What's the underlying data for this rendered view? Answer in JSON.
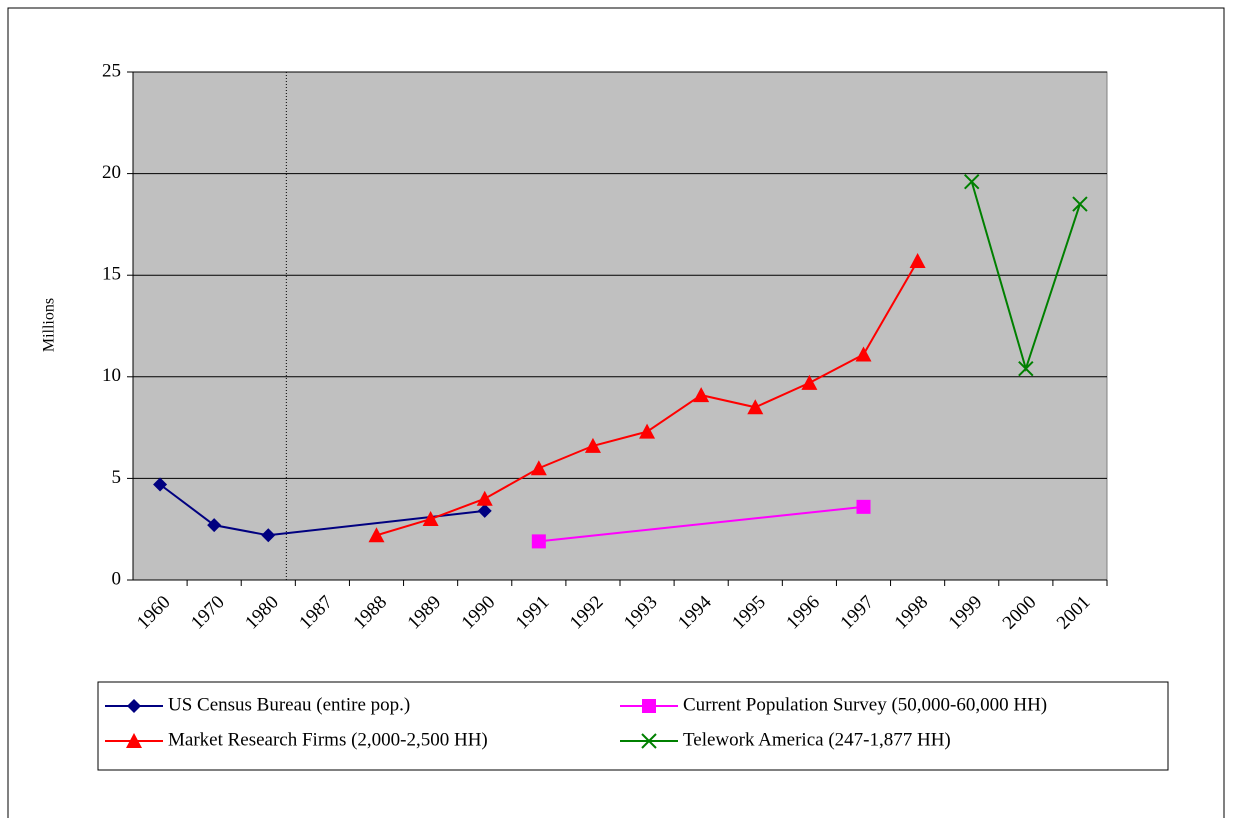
{
  "chart_data": {
    "type": "line",
    "y_label": "Millions",
    "categories": [
      "1960",
      "1970",
      "1980",
      "1987",
      "1988",
      "1989",
      "1990",
      "1991",
      "1992",
      "1993",
      "1994",
      "1995",
      "1996",
      "1997",
      "1998",
      "1999",
      "2000",
      "2001"
    ],
    "series": [
      {
        "name": "US Census Bureau (entire pop.)",
        "color": "#000080",
        "marker": "diamond",
        "values": [
          4.7,
          2.7,
          2.2,
          null,
          null,
          null,
          3.4,
          null,
          null,
          null,
          null,
          null,
          null,
          null,
          null,
          null,
          null,
          null
        ]
      },
      {
        "name": "Current Population Survey (50,000-60,000 HH)",
        "color": "#ff00ff",
        "marker": "square",
        "values": [
          null,
          null,
          null,
          null,
          null,
          null,
          null,
          1.9,
          null,
          null,
          null,
          null,
          null,
          3.6,
          null,
          null,
          null,
          null
        ]
      },
      {
        "name": "Market Research Firms (2,000-2,500 HH)",
        "color": "#ff0000",
        "marker": "triangle",
        "values": [
          null,
          null,
          null,
          null,
          2.2,
          3.0,
          4.0,
          5.5,
          6.6,
          7.3,
          9.1,
          8.5,
          9.7,
          11.1,
          15.7,
          null,
          null,
          null
        ]
      },
      {
        "name": "Telework America (247-1,877 HH)",
        "color": "#008000",
        "marker": "x",
        "values": [
          null,
          null,
          null,
          null,
          null,
          null,
          null,
          null,
          null,
          null,
          null,
          null,
          null,
          null,
          null,
          19.6,
          10.4,
          18.5
        ]
      }
    ],
    "connect_gaps": true,
    "ylim": [
      0,
      25
    ],
    "yticks": [
      0,
      5,
      10,
      15,
      20,
      25
    ],
    "grid": true,
    "plot_background": "#c0c0c0"
  }
}
